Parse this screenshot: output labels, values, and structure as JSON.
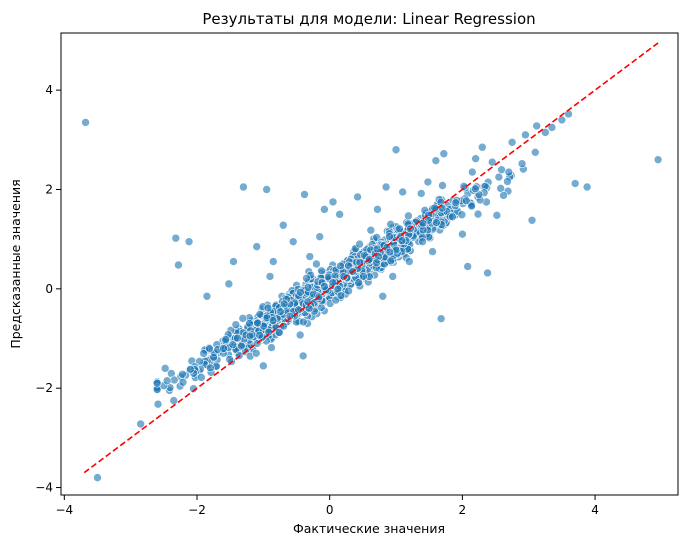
{
  "chart_data": {
    "type": "scatter",
    "title": "Результаты для модели: Linear Regression",
    "xlabel": "Фактические значения",
    "ylabel": "Предсказанные значения",
    "xlim": [
      -4.05,
      5.25
    ],
    "ylim": [
      -4.15,
      5.15
    ],
    "xticks": [
      {
        "value": -4,
        "label": "−4"
      },
      {
        "value": -2,
        "label": "−2"
      },
      {
        "value": 0,
        "label": "0"
      },
      {
        "value": 2,
        "label": "2"
      },
      {
        "value": 4,
        "label": "4"
      }
    ],
    "yticks": [
      {
        "value": -4,
        "label": "−4"
      },
      {
        "value": -2,
        "label": "−2"
      },
      {
        "value": 0,
        "label": "0"
      },
      {
        "value": 2,
        "label": "2"
      },
      {
        "value": 4,
        "label": "4"
      }
    ],
    "grid": false,
    "point_color": "#1f77b4",
    "line_color": "#ff0000",
    "reference_line": {
      "x": [
        -3.7,
        4.95
      ],
      "y": [
        -3.7,
        4.95
      ]
    },
    "points": [
      [
        -3.68,
        3.35
      ],
      [
        -3.5,
        -3.8
      ],
      [
        -2.85,
        -2.72
      ],
      [
        -2.32,
        1.02
      ],
      [
        -2.28,
        0.48
      ],
      [
        -2.12,
        0.95
      ],
      [
        -1.85,
        -0.15
      ],
      [
        -1.45,
        0.55
      ],
      [
        -1.52,
        0.1
      ],
      [
        -1.3,
        2.05
      ],
      [
        -0.95,
        2.0
      ],
      [
        -1.1,
        0.85
      ],
      [
        -0.85,
        0.55
      ],
      [
        -0.7,
        1.28
      ],
      [
        -0.38,
        1.9
      ],
      [
        -0.55,
        0.95
      ],
      [
        -0.3,
        0.65
      ],
      [
        -0.15,
        1.05
      ],
      [
        -0.08,
        1.6
      ],
      [
        0.05,
        1.75
      ],
      [
        0.15,
        1.5
      ],
      [
        0.42,
        1.85
      ],
      [
        0.62,
        1.18
      ],
      [
        0.72,
        1.6
      ],
      [
        0.85,
        2.05
      ],
      [
        1.0,
        2.8
      ],
      [
        1.38,
        1.92
      ],
      [
        1.48,
        2.15
      ],
      [
        1.6,
        2.58
      ],
      [
        1.7,
        2.08
      ],
      [
        1.72,
        2.72
      ],
      [
        1.4,
        0.95
      ],
      [
        1.55,
        0.75
      ],
      [
        1.68,
        -0.6
      ],
      [
        2.08,
        0.45
      ],
      [
        2.38,
        0.32
      ],
      [
        2.52,
        1.48
      ],
      [
        2.62,
        1.88
      ],
      [
        2.9,
        2.52
      ],
      [
        3.05,
        1.38
      ],
      [
        3.7,
        2.12
      ],
      [
        3.88,
        2.05
      ],
      [
        4.95,
        2.6
      ],
      [
        3.6,
        3.52
      ],
      [
        3.12,
        3.28
      ],
      [
        3.35,
        3.25
      ],
      [
        3.25,
        3.15
      ],
      [
        3.5,
        3.4
      ],
      [
        2.45,
        2.55
      ],
      [
        2.7,
        2.35
      ],
      [
        2.2,
        2.62
      ],
      [
        2.3,
        2.85
      ],
      [
        1.85,
        1.45
      ],
      [
        2.0,
        1.1
      ],
      [
        1.2,
        0.55
      ],
      [
        0.95,
        0.25
      ],
      [
        0.8,
        -0.15
      ],
      [
        -0.6,
        -0.55
      ],
      [
        -0.4,
        -1.35
      ],
      [
        -1.0,
        -1.55
      ],
      [
        -1.6,
        -1.2
      ],
      [
        -2.05,
        -1.7
      ],
      [
        -2.5,
        -1.95
      ],
      [
        -2.45,
        -1.85
      ],
      [
        -2.6,
        -1.9
      ],
      [
        -2.35,
        -2.25
      ],
      [
        -2.48,
        -1.6
      ],
      [
        -2.22,
        -1.72
      ],
      [
        -2.1,
        -1.62
      ],
      [
        -1.9,
        -1.3
      ],
      [
        -1.75,
        -1.38
      ],
      [
        -0.2,
        0.5
      ],
      [
        -0.9,
        0.25
      ],
      [
        -1.2,
        -0.95
      ],
      [
        0.45,
        0.9
      ],
      [
        1.1,
        1.95
      ],
      [
        2.15,
        2.35
      ],
      [
        2.55,
        2.25
      ],
      [
        2.75,
        2.95
      ],
      [
        2.95,
        3.1
      ]
    ]
  }
}
